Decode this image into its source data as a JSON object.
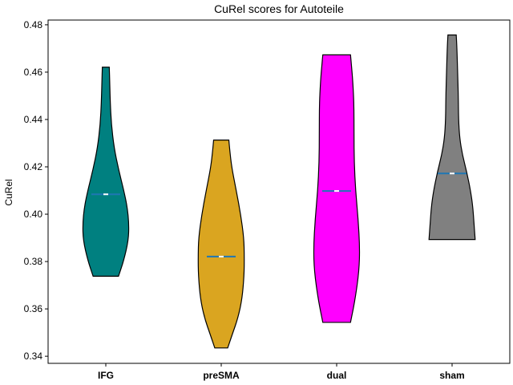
{
  "chart_data": {
    "type": "violin",
    "title": "CuRel scores for Autoteile",
    "xlabel": "",
    "ylabel": "CuRel",
    "ylim": [
      0.337,
      0.482
    ],
    "yticks": [
      "0.34",
      "0.36",
      "0.38",
      "0.40",
      "0.42",
      "0.44",
      "0.46",
      "0.48"
    ],
    "categories": [
      "IFG",
      "preSMA",
      "dual",
      "sham"
    ],
    "colors": [
      "#008080",
      "#DAA520",
      "#FF00FF",
      "#808080"
    ],
    "series": [
      {
        "min": 0.3738,
        "max": 0.4621,
        "median": 0.4084,
        "mean": 0.4084,
        "density": [
          [
            0.3738,
            0.55
          ],
          [
            0.3805,
            0.78
          ],
          [
            0.389,
            0.98
          ],
          [
            0.396,
            1.0
          ],
          [
            0.403,
            0.93
          ],
          [
            0.41,
            0.78
          ],
          [
            0.419,
            0.55
          ],
          [
            0.428,
            0.36
          ],
          [
            0.438,
            0.24
          ],
          [
            0.448,
            0.19
          ],
          [
            0.456,
            0.17
          ],
          [
            0.4621,
            0.15
          ]
        ]
      },
      {
        "min": 0.3435,
        "max": 0.4313,
        "median": 0.3821,
        "mean": 0.3821,
        "density": [
          [
            0.3435,
            0.28
          ],
          [
            0.349,
            0.47
          ],
          [
            0.356,
            0.72
          ],
          [
            0.364,
            0.9
          ],
          [
            0.374,
            0.99
          ],
          [
            0.3821,
            1.0
          ],
          [
            0.39,
            0.98
          ],
          [
            0.4,
            0.84
          ],
          [
            0.41,
            0.65
          ],
          [
            0.42,
            0.45
          ],
          [
            0.427,
            0.37
          ],
          [
            0.4313,
            0.33
          ]
        ]
      },
      {
        "min": 0.3543,
        "max": 0.4673,
        "median": 0.4098,
        "mean": 0.4098,
        "density": [
          [
            0.3543,
            0.6
          ],
          [
            0.364,
            0.8
          ],
          [
            0.376,
            0.97
          ],
          [
            0.386,
            1.0
          ],
          [
            0.398,
            0.93
          ],
          [
            0.41,
            0.82
          ],
          [
            0.422,
            0.76
          ],
          [
            0.434,
            0.75
          ],
          [
            0.446,
            0.75
          ],
          [
            0.456,
            0.7
          ],
          [
            0.463,
            0.64
          ],
          [
            0.4673,
            0.6
          ]
        ]
      },
      {
        "min": 0.3893,
        "max": 0.4757,
        "median": 0.4172,
        "mean": 0.4172,
        "density": [
          [
            0.3893,
            1.0
          ],
          [
            0.396,
            0.95
          ],
          [
            0.403,
            0.9
          ],
          [
            0.41,
            0.8
          ],
          [
            0.418,
            0.63
          ],
          [
            0.425,
            0.45
          ],
          [
            0.432,
            0.33
          ],
          [
            0.44,
            0.28
          ],
          [
            0.45,
            0.27
          ],
          [
            0.46,
            0.24
          ],
          [
            0.47,
            0.21
          ],
          [
            0.4757,
            0.18
          ]
        ]
      }
    ],
    "grid": false
  }
}
